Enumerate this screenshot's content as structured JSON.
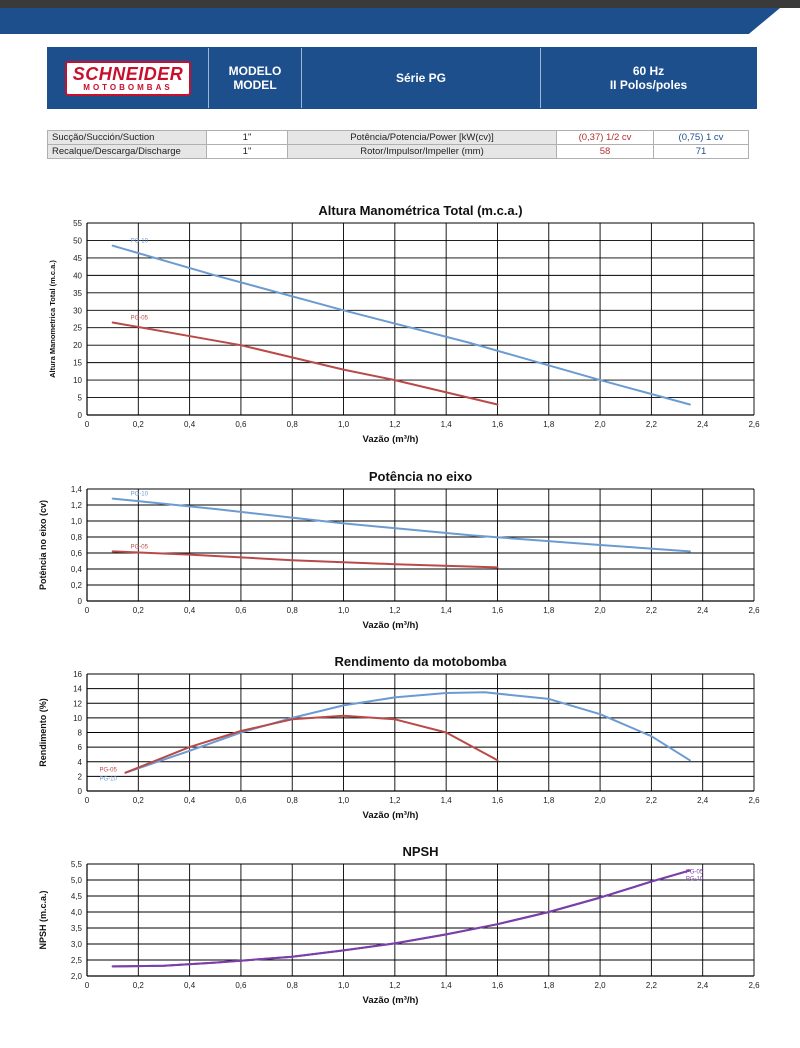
{
  "header": {
    "brand": "SCHNEIDER",
    "brand_sub": "MOTOBOMBAS",
    "model_label": "MODELO\nMODEL",
    "series": "Série PG",
    "frequency": "60 Hz\nII Polos/poles"
  },
  "specs": {
    "row1": {
      "label": "Sucção/Succión/Suction",
      "value": "1\"",
      "param": "Potência/Potencia/Power [kW(cv)]",
      "v1": "(0,37) 1/2 cv",
      "v2": "(0,75) 1 cv"
    },
    "row2": {
      "label": "Recalque/Descarga/Discharge",
      "value": "1\"",
      "param": "Rotor/Impulsor/Impeller (mm)",
      "v1": "58",
      "v2": "71"
    }
  },
  "colors": {
    "pg05": "#b94a48",
    "pg10": "#6b9bd1",
    "npsh": "#7b3fa8",
    "header": "#1d4f8c"
  },
  "chart_data": [
    {
      "type": "line",
      "title": "Altura Manométrica Total (m.c.a.)",
      "xlabel": "Vazão (m³/h)",
      "ylabel": "Altura Manometrica Total (m.c.a.)",
      "xlim": [
        0,
        2.6
      ],
      "ylim": [
        0,
        55
      ],
      "xticks": [
        "0",
        "0,2",
        "0,4",
        "0,6",
        "0,8",
        "1,0",
        "1,2",
        "1,4",
        "1,6",
        "1,8",
        "2,0",
        "2,2",
        "2,4",
        "2,6"
      ],
      "yticks": [
        "0",
        "5",
        "10",
        "15",
        "20",
        "25",
        "30",
        "35",
        "40",
        "45",
        "50",
        "55"
      ],
      "grid": true,
      "series": [
        {
          "name": "PG-10",
          "x": [
            0.1,
            0.5,
            1.0,
            1.5,
            2.0,
            2.35
          ],
          "y": [
            48.5,
            40,
            30,
            20.5,
            10,
            3
          ]
        },
        {
          "name": "PG-05",
          "x": [
            0.1,
            0.6,
            1.0,
            1.2,
            1.6
          ],
          "y": [
            26.5,
            20,
            13,
            10,
            3
          ]
        }
      ]
    },
    {
      "type": "line",
      "title": "Potência no eixo",
      "xlabel": "Vazão (m³/h)",
      "ylabel": "Potência no eixo (cv)",
      "xlim": [
        0,
        2.6
      ],
      "ylim": [
        0,
        1.4
      ],
      "xticks": [
        "0",
        "0,2",
        "0,4",
        "0,6",
        "0,8",
        "1,0",
        "1,2",
        "1,4",
        "1,6",
        "1,8",
        "2,0",
        "2,2",
        "2,4",
        "2,6"
      ],
      "yticks": [
        "0",
        "0,2",
        "0,4",
        "0,6",
        "0,8",
        "1,0",
        "1,2",
        "1,4"
      ],
      "grid": true,
      "series": [
        {
          "name": "PG-10",
          "x": [
            0.1,
            0.5,
            1.0,
            1.5,
            2.0,
            2.35
          ],
          "y": [
            1.28,
            1.15,
            0.97,
            0.82,
            0.7,
            0.62
          ]
        },
        {
          "name": "PG-05",
          "x": [
            0.1,
            0.4,
            0.8,
            1.2,
            1.6
          ],
          "y": [
            0.62,
            0.58,
            0.51,
            0.46,
            0.42
          ]
        }
      ]
    },
    {
      "type": "line",
      "title": "Rendimento da motobomba",
      "xlabel": "Vazão (m³/h)",
      "ylabel": "Rendimento (%)",
      "xlim": [
        0,
        2.6
      ],
      "ylim": [
        0,
        16
      ],
      "xticks": [
        "0",
        "0,2",
        "0,4",
        "0,6",
        "0,8",
        "1,0",
        "1,2",
        "1,4",
        "1,6",
        "1,8",
        "2,0",
        "2,2",
        "2,4",
        "2,6"
      ],
      "yticks": [
        "0",
        "2",
        "4",
        "6",
        "8",
        "10",
        "12",
        "14",
        "16"
      ],
      "grid": true,
      "series": [
        {
          "name": "PG-10",
          "x": [
            0.15,
            0.4,
            0.6,
            0.8,
            1.0,
            1.2,
            1.4,
            1.55,
            1.8,
            2.0,
            2.2,
            2.35
          ],
          "y": [
            2.5,
            5.5,
            8,
            10,
            11.7,
            12.8,
            13.4,
            13.5,
            12.6,
            10.5,
            7.5,
            4.2
          ]
        },
        {
          "name": "PG-05",
          "x": [
            0.15,
            0.4,
            0.6,
            0.8,
            1.0,
            1.2,
            1.4,
            1.6
          ],
          "y": [
            2.5,
            6,
            8.2,
            9.8,
            10.3,
            9.8,
            8,
            4.2
          ]
        }
      ]
    },
    {
      "type": "line",
      "title": "NPSH",
      "xlabel": "Vazão (m³/h)",
      "ylabel": "NPSH (m.c.a.)",
      "xlim": [
        0,
        2.6
      ],
      "ylim": [
        2.0,
        5.5
      ],
      "xticks": [
        "0",
        "0,2",
        "0,4",
        "0,6",
        "0,8",
        "1,0",
        "1,2",
        "1,4",
        "1,6",
        "1,8",
        "2,0",
        "2,2",
        "2,4",
        "2,6"
      ],
      "yticks": [
        "2,0",
        "2,5",
        "3,0",
        "3,5",
        "4,0",
        "4,5",
        "5,0",
        "5,5"
      ],
      "grid": true,
      "series": [
        {
          "name": "PG-05",
          "x": [
            0.1,
            0.3,
            0.5,
            0.8,
            1.0,
            1.2,
            1.4,
            1.6,
            1.8,
            2.0,
            2.2,
            2.35
          ],
          "y": [
            2.3,
            2.32,
            2.42,
            2.6,
            2.8,
            3.02,
            3.3,
            3.62,
            4.0,
            4.45,
            4.95,
            5.3
          ]
        },
        {
          "name": "PG-10",
          "x": [
            0.1,
            0.3,
            0.5,
            0.8,
            1.0,
            1.2,
            1.4,
            1.6,
            1.8,
            2.0,
            2.2,
            2.35
          ],
          "y": [
            2.3,
            2.32,
            2.42,
            2.6,
            2.8,
            3.02,
            3.3,
            3.62,
            4.0,
            4.45,
            4.95,
            5.3
          ]
        }
      ]
    }
  ]
}
